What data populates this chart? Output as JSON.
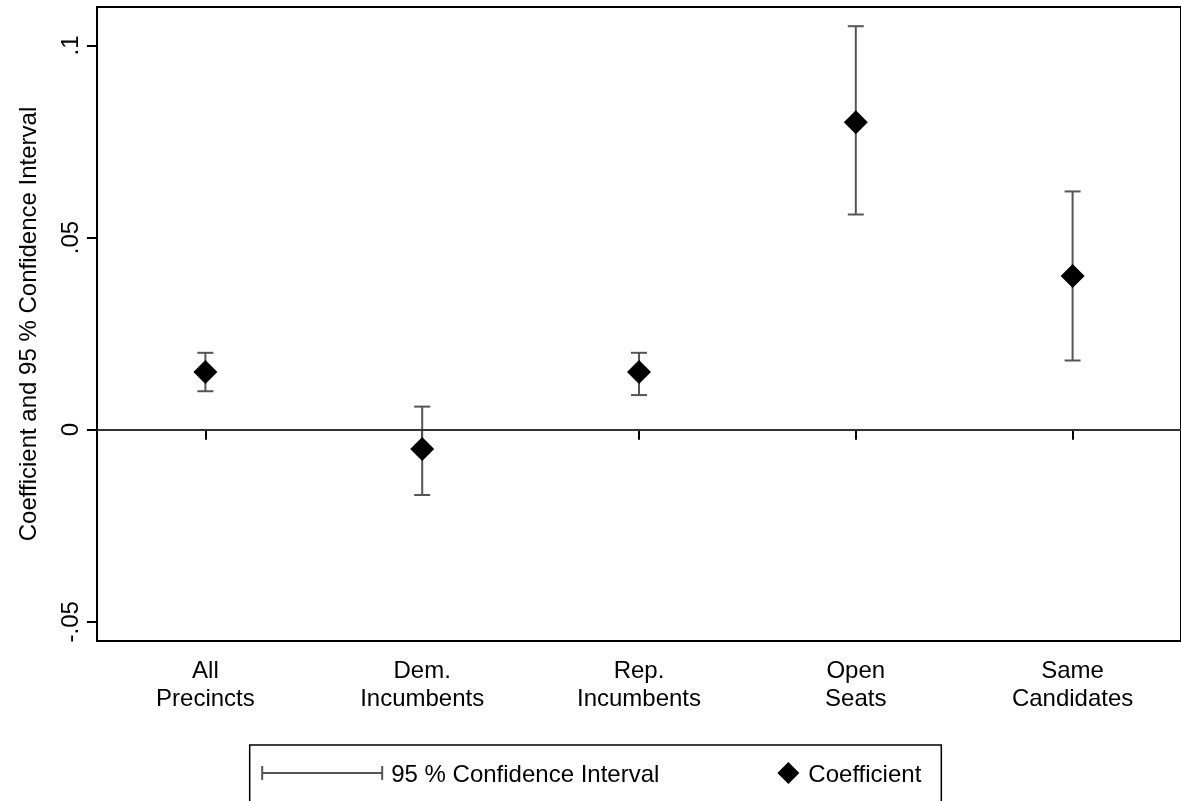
{
  "chart_data": {
    "type": "scatter",
    "ylabel": "Coefficient and 95 % Confidence Interval",
    "categories": [
      "All Precincts",
      "Dem. Incumbents",
      "Rep. Incumbents",
      "Open Seats",
      "Same Candidates"
    ],
    "series": [
      {
        "name": "Coefficient",
        "color": "#000000",
        "marker": "diamond",
        "values": [
          0.015,
          -0.005,
          0.015,
          0.08,
          0.04
        ],
        "errors": [
          [
            0.01,
            0.02
          ],
          [
            -0.017,
            0.006
          ],
          [
            0.009,
            0.02
          ],
          [
            0.056,
            0.105
          ],
          [
            0.018,
            0.062
          ]
        ]
      }
    ],
    "annotations": [
      "95 % Confidence Interval"
    ],
    "ylim": [
      -0.055,
      0.11
    ],
    "yticks": [
      {
        "value": -0.05,
        "label": "-.05"
      },
      {
        "value": 0,
        "label": "0"
      },
      {
        "value": 0.05,
        "label": ".05"
      },
      {
        "value": 0.1,
        "label": ".1"
      }
    ],
    "ref_lines": [
      {
        "axis": "y",
        "value": 0,
        "color": "#333333"
      }
    ],
    "legend": "bottom"
  }
}
